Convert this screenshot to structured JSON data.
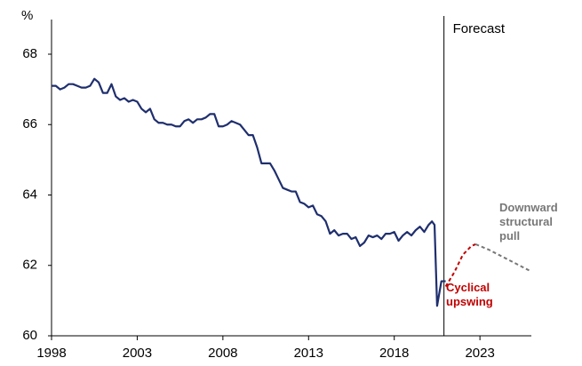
{
  "chart_data": {
    "type": "line",
    "y_label": "%",
    "xlim": [
      1998,
      2026
    ],
    "xticks": [
      1998,
      2003,
      2008,
      2013,
      2018,
      2023
    ],
    "ylim": [
      60,
      68
    ],
    "yticks": [
      60,
      62,
      64,
      66,
      68
    ],
    "grid": false,
    "forecast": {
      "x": 2020.9,
      "label": "Forecast"
    },
    "series": [
      {
        "color": "#1f2f6e",
        "dashed": false,
        "x": [
          1998.0,
          1998.25,
          1998.5,
          1998.75,
          1999.0,
          1999.25,
          1999.5,
          1999.75,
          2000.0,
          2000.25,
          2000.5,
          2000.75,
          2001.0,
          2001.25,
          2001.5,
          2001.75,
          2002.0,
          2002.25,
          2002.5,
          2002.75,
          2003.0,
          2003.25,
          2003.5,
          2003.75,
          2004.0,
          2004.25,
          2004.5,
          2004.75,
          2005.0,
          2005.25,
          2005.5,
          2005.75,
          2006.0,
          2006.25,
          2006.5,
          2006.75,
          2007.0,
          2007.25,
          2007.5,
          2007.75,
          2008.0,
          2008.25,
          2008.5,
          2008.75,
          2009.0,
          2009.25,
          2009.5,
          2009.75,
          2010.0,
          2010.25,
          2010.5,
          2010.75,
          2011.0,
          2011.25,
          2011.5,
          2011.75,
          2012.0,
          2012.25,
          2012.5,
          2012.75,
          2013.0,
          2013.25,
          2013.5,
          2013.75,
          2014.0,
          2014.25,
          2014.5,
          2014.75,
          2015.0,
          2015.25,
          2015.5,
          2015.75,
          2016.0,
          2016.25,
          2016.5,
          2016.75,
          2017.0,
          2017.25,
          2017.5,
          2017.75,
          2018.0,
          2018.25,
          2018.5,
          2018.75,
          2019.0,
          2019.25,
          2019.5,
          2019.75,
          2020.0,
          2020.2,
          2020.35,
          2020.5,
          2020.75,
          2021.0
        ],
        "values": [
          67.1,
          67.1,
          67.0,
          67.05,
          67.15,
          67.15,
          67.1,
          67.05,
          67.05,
          67.1,
          67.3,
          67.2,
          66.9,
          66.9,
          67.15,
          66.8,
          66.7,
          66.75,
          66.65,
          66.7,
          66.65,
          66.45,
          66.35,
          66.45,
          66.15,
          66.05,
          66.05,
          66.0,
          66.0,
          65.95,
          65.95,
          66.1,
          66.15,
          66.05,
          66.15,
          66.15,
          66.2,
          66.3,
          66.3,
          65.95,
          65.95,
          66.0,
          66.1,
          66.05,
          66.0,
          65.85,
          65.7,
          65.7,
          65.35,
          64.9,
          64.9,
          64.9,
          64.7,
          64.45,
          64.2,
          64.15,
          64.1,
          64.1,
          63.8,
          63.75,
          63.65,
          63.7,
          63.45,
          63.4,
          63.25,
          62.9,
          63.0,
          62.85,
          62.9,
          62.9,
          62.75,
          62.8,
          62.55,
          62.65,
          62.85,
          62.8,
          62.85,
          62.75,
          62.9,
          62.9,
          62.95,
          62.7,
          62.85,
          62.95,
          62.85,
          63.0,
          63.1,
          62.95,
          63.15,
          63.25,
          63.15,
          60.85,
          61.55,
          61.55
        ]
      },
      {
        "name": "Cyclical upswing",
        "color": "#c00000",
        "dashed": true,
        "x": [
          2021.0,
          2021.5,
          2022.0,
          2022.5,
          2022.75
        ],
        "values": [
          61.4,
          61.8,
          62.3,
          62.55,
          62.6
        ]
      },
      {
        "name": "Downward structural pull",
        "color": "#777777",
        "dashed": true,
        "x": [
          2022.75,
          2023.5,
          2024.5,
          2025.5,
          2025.9
        ],
        "values": [
          62.6,
          62.45,
          62.2,
          61.95,
          61.85
        ]
      }
    ]
  }
}
